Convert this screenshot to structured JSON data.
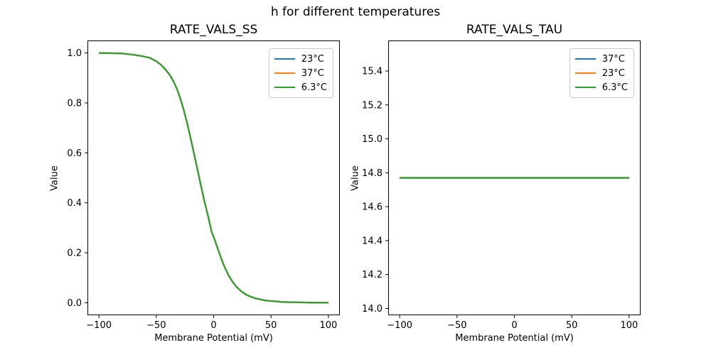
{
  "suptitle": "h for different temperatures",
  "colors": {
    "series_blue": "#1f77b4",
    "series_orange": "#ff7f0e",
    "series_green": "#2ca02c",
    "axis": "#000000",
    "legend_border": "#cccccc",
    "background": "#ffffff"
  },
  "chart_data": [
    {
      "type": "line",
      "title": "RATE_VALS_SS",
      "xlabel": "Membrane Potential (mV)",
      "ylabel": "Value",
      "xlim": [
        -110,
        110
      ],
      "ylim": [
        -0.05,
        1.05
      ],
      "xtick_values": [
        -100,
        -50,
        0,
        50,
        100
      ],
      "xtick_labels": [
        "−100",
        "−50",
        "0",
        "50",
        "100"
      ],
      "ytick_values": [
        0.0,
        0.2,
        0.4,
        0.6,
        0.8,
        1.0
      ],
      "ytick_labels": [
        "0.0",
        "0.2",
        "0.4",
        "0.6",
        "0.8",
        "1.0"
      ],
      "grid": false,
      "legend_position": "upper right",
      "series": [
        {
          "name": "23°C",
          "color": "#1f77b4"
        },
        {
          "name": "37°C",
          "color": "#ff7f0e"
        },
        {
          "name": "6.3°C",
          "color": "#2ca02c"
        }
      ],
      "series_note": "All three temperature curves overlap exactly (sigmoidal steady-state inactivation from 1 to 0); the green 6.3°C curve is drawn last and is the visible one.",
      "x": [
        -100,
        -90,
        -80,
        -70,
        -62,
        -56,
        -50,
        -46,
        -42,
        -38,
        -35,
        -32,
        -29,
        -26,
        -23,
        -20,
        -17,
        -14,
        -11,
        -8,
        -5,
        -2,
        1,
        4,
        7,
        10,
        13,
        16,
        20,
        24,
        28,
        32,
        36,
        40,
        45,
        50,
        55,
        60,
        70,
        80,
        90,
        100
      ],
      "y": [
        1.0,
        0.999,
        0.998,
        0.993,
        0.987,
        0.981,
        0.967,
        0.953,
        0.934,
        0.91,
        0.886,
        0.856,
        0.817,
        0.77,
        0.717,
        0.657,
        0.595,
        0.531,
        0.467,
        0.405,
        0.35,
        0.287,
        0.251,
        0.211,
        0.172,
        0.138,
        0.11,
        0.087,
        0.063,
        0.046,
        0.033,
        0.025,
        0.018,
        0.014,
        0.009,
        0.007,
        0.005,
        0.003,
        0.002,
        0.001,
        0.0,
        0.0
      ]
    },
    {
      "type": "line",
      "title": "RATE_VALS_TAU",
      "xlabel": "Membrane Potential (mV)",
      "ylabel": "Value",
      "xlim": [
        -110,
        110
      ],
      "ylim": [
        13.96,
        15.58
      ],
      "xtick_values": [
        -100,
        -50,
        0,
        50,
        100
      ],
      "xtick_labels": [
        "−100",
        "−50",
        "0",
        "50",
        "100"
      ],
      "ytick_values": [
        14.0,
        14.2,
        14.4,
        14.6,
        14.8,
        15.0,
        15.2,
        15.4
      ],
      "ytick_labels": [
        "14.0",
        "14.2",
        "14.4",
        "14.6",
        "14.8",
        "15.0",
        "15.2",
        "15.4"
      ],
      "grid": false,
      "legend_position": "upper right",
      "series": [
        {
          "name": "37°C",
          "color": "#1f77b4"
        },
        {
          "name": "23°C",
          "color": "#ff7f0e"
        },
        {
          "name": "6.3°C",
          "color": "#2ca02c"
        }
      ],
      "series_note": "All three temperature curves are identical constant lines at value 14.77; the green 6.3°C line is drawn last and is the visible one.",
      "x": [
        -100,
        100
      ],
      "y": [
        14.77,
        14.77
      ]
    }
  ]
}
